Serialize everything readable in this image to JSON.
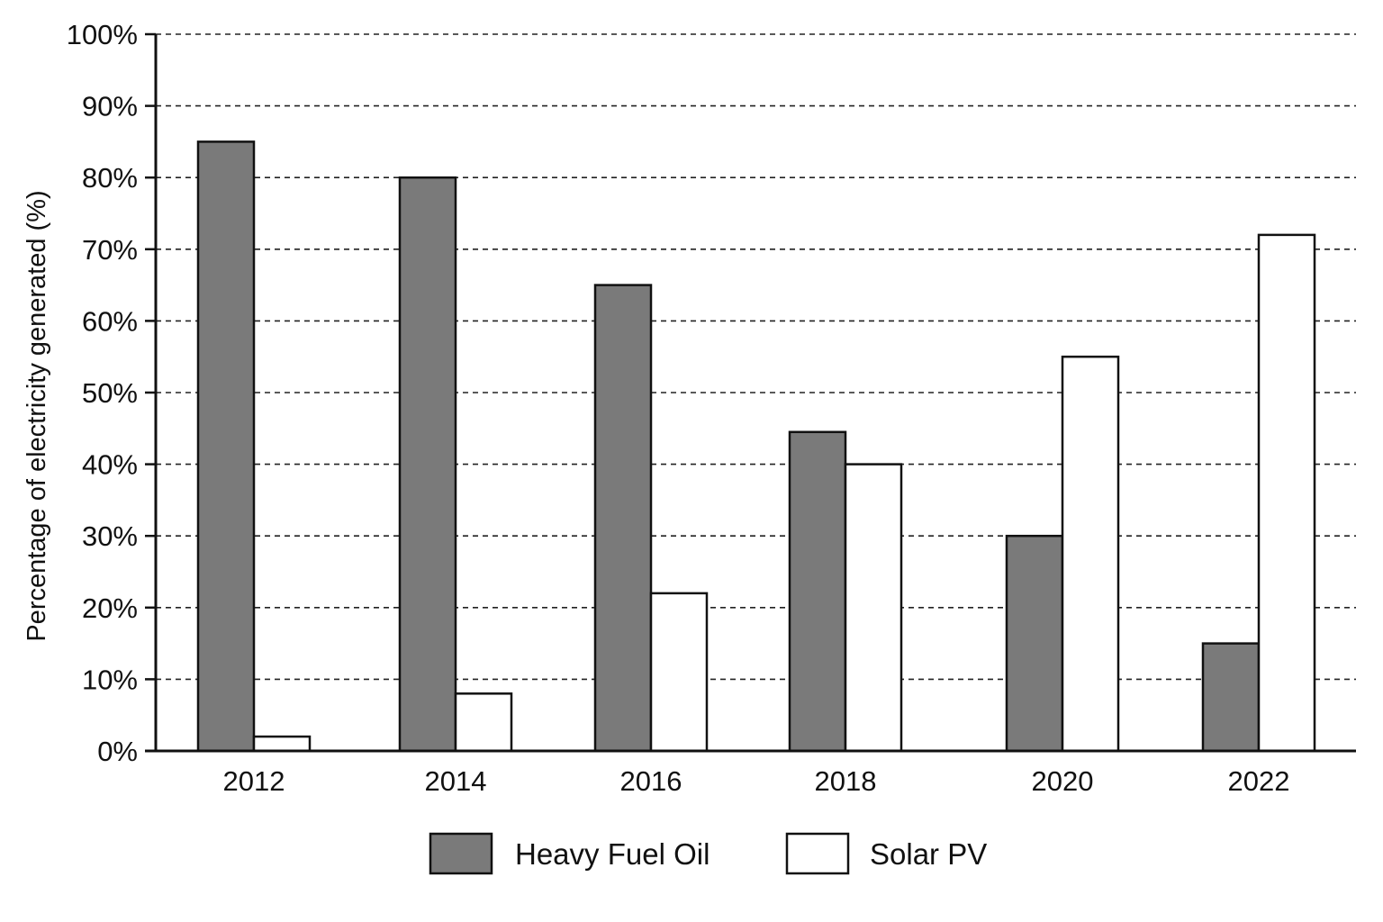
{
  "chart_data": {
    "type": "bar",
    "title": "",
    "xlabel": "",
    "ylabel": "Percentage of electricity generated (%)",
    "categories": [
      "2012",
      "2014",
      "2016",
      "2018",
      "2020",
      "2022"
    ],
    "series": [
      {
        "name": "Heavy Fuel Oil",
        "values": [
          85,
          80,
          65,
          44.5,
          30,
          15
        ],
        "color": "#7a7a7a"
      },
      {
        "name": "Solar PV",
        "values": [
          2,
          8,
          22,
          40,
          55,
          72
        ],
        "color": "#ffffff"
      }
    ],
    "ylim": [
      0,
      100
    ],
    "yticks": [
      0,
      10,
      20,
      30,
      40,
      50,
      60,
      70,
      80,
      90,
      100
    ],
    "ytick_labels": [
      "0%",
      "10%",
      "20%",
      "30%",
      "40%",
      "50%",
      "60%",
      "70%",
      "80%",
      "90%",
      "100%"
    ],
    "grid": "horizontal dashed",
    "legend_position": "bottom-center",
    "bar_outline_color": "#111111"
  }
}
